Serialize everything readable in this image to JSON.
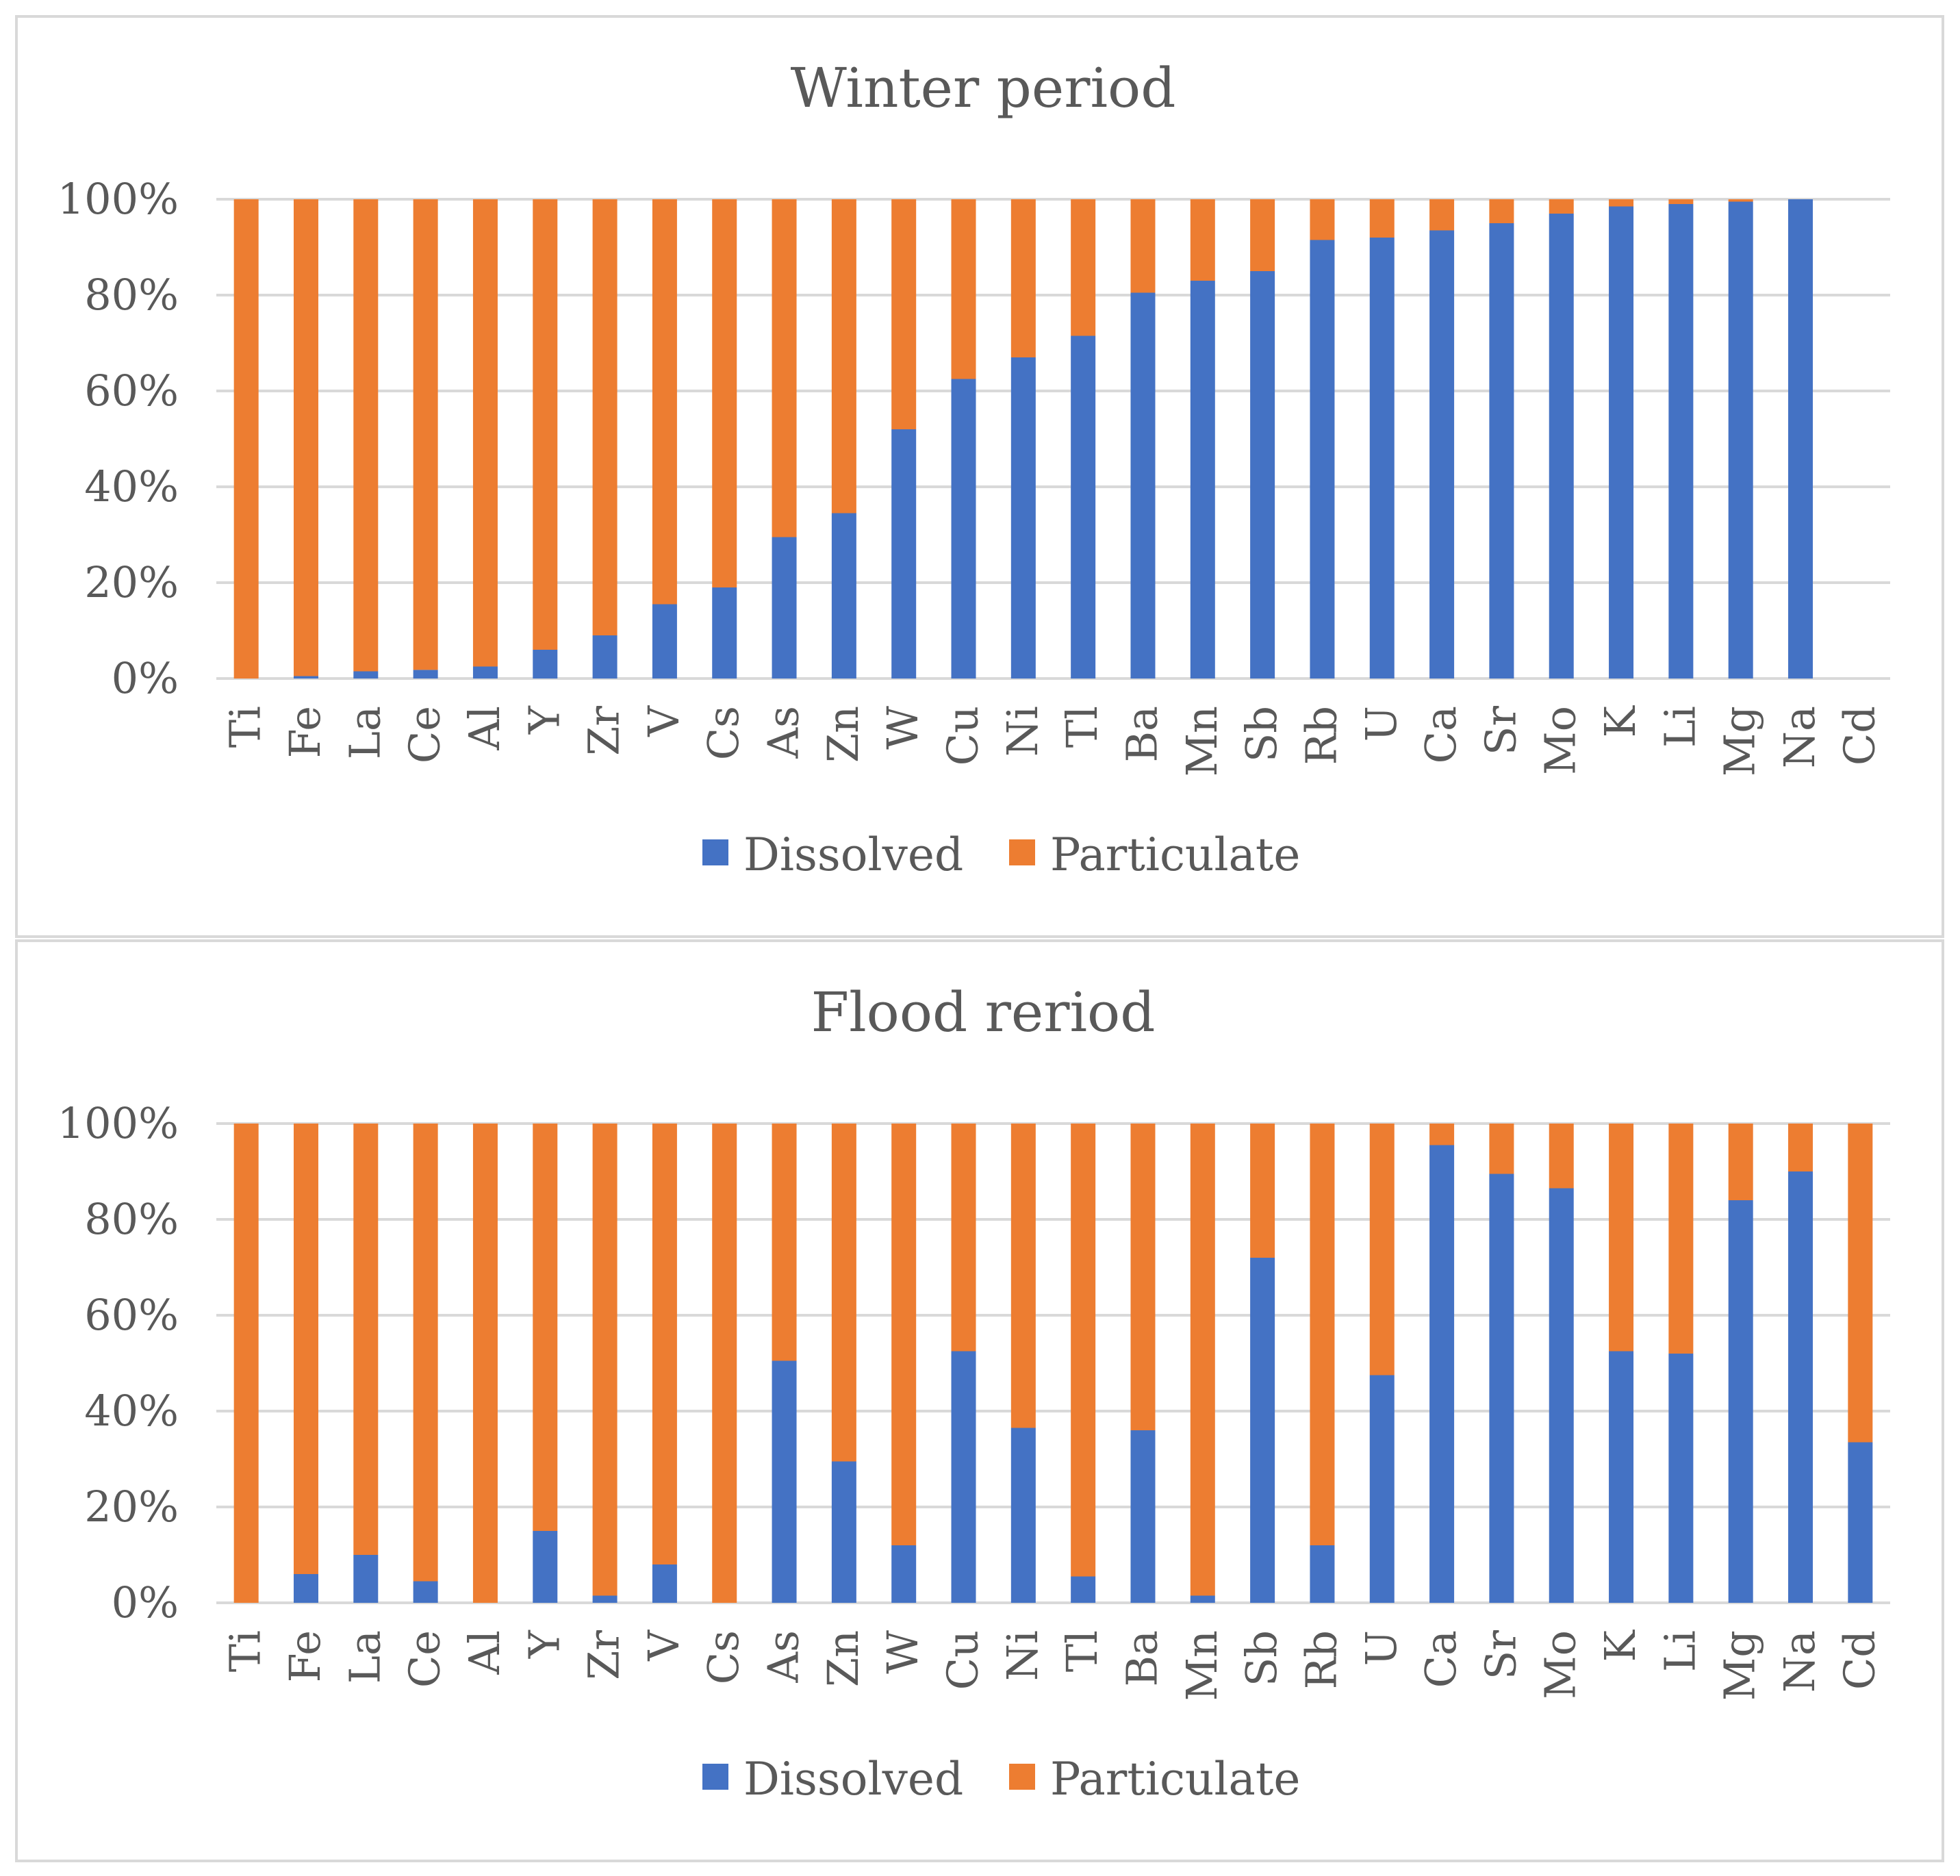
{
  "colors": {
    "dissolved": "#4472c4",
    "particulate": "#ed7d31",
    "grid": "#d9d9d9",
    "text": "#595959"
  },
  "legend": {
    "dissolved": "Dissolved",
    "particulate": "Particulate"
  },
  "chart_data": [
    {
      "type": "bar",
      "stacked": true,
      "title": "Winter period",
      "categories": [
        "Ti",
        "Fe",
        "La",
        "Ce",
        "Al",
        "Y",
        "Zr",
        "V",
        "Cs",
        "As",
        "Zn",
        "W",
        "Cu",
        "Ni",
        "Tl",
        "Ba",
        "Mn",
        "Sb",
        "Rb",
        "U",
        "Ca",
        "Sr",
        "Mo",
        "K",
        "Li",
        "Mg",
        "Na",
        "Cd"
      ],
      "y_ticks": [
        "0%",
        "20%",
        "40%",
        "60%",
        "80%",
        "100%"
      ],
      "ylim": [
        0,
        100
      ],
      "series": [
        {
          "name": "Dissolved",
          "values": [
            0,
            0.5,
            1.5,
            1.8,
            2.5,
            6,
            9,
            15.5,
            19,
            29.5,
            34.5,
            52,
            62.5,
            67,
            71.5,
            80.5,
            83,
            85,
            91.5,
            92,
            93.5,
            95,
            97,
            98.5,
            99,
            99.5,
            100,
            0
          ]
        },
        {
          "name": "Particulate",
          "values": [
            100,
            99.5,
            98.5,
            98.2,
            97.5,
            94,
            91,
            84.5,
            81,
            70.5,
            65.5,
            48,
            37.5,
            33,
            28.5,
            19.5,
            17,
            15,
            8.5,
            8,
            6.5,
            5,
            3,
            1.5,
            1,
            0.5,
            0,
            0
          ]
        }
      ],
      "legend_position": "bottom"
    },
    {
      "type": "bar",
      "stacked": true,
      "title": "Flood reriod",
      "categories": [
        "Ti",
        "Fe",
        "La",
        "Ce",
        "Al",
        "Y",
        "Zr",
        "V",
        "Cs",
        "As",
        "Zn",
        "W",
        "Cu",
        "Ni",
        "Tl",
        "Ba",
        "Mn",
        "Sb",
        "Rb",
        "U",
        "Ca",
        "Sr",
        "Mo",
        "K",
        "Li",
        "Mg",
        "Na",
        "Cd"
      ],
      "y_ticks": [
        "0%",
        "20%",
        "40%",
        "60%",
        "80%",
        "100%"
      ],
      "ylim": [
        0,
        100
      ],
      "series": [
        {
          "name": "Dissolved",
          "values": [
            0,
            6,
            10,
            4.5,
            0,
            15,
            1.5,
            8,
            0,
            50.5,
            29.5,
            12,
            52.5,
            36.5,
            5.5,
            36,
            1.5,
            72,
            12,
            47.5,
            95.5,
            89.5,
            86.5,
            52.5,
            52,
            84,
            90,
            33.5
          ]
        },
        {
          "name": "Particulate",
          "values": [
            100,
            94,
            90,
            95.5,
            100,
            85,
            98.5,
            92,
            100,
            49.5,
            70.5,
            88,
            47.5,
            63.5,
            94.5,
            64,
            98.5,
            28,
            88,
            52.5,
            4.5,
            10.5,
            13.5,
            47.5,
            48,
            16,
            10,
            66.5
          ]
        }
      ],
      "legend_position": "bottom"
    }
  ]
}
